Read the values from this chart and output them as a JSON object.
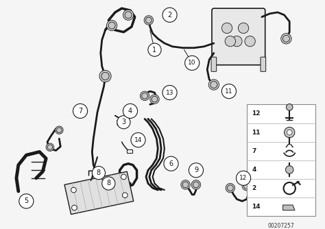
{
  "bg_color": "#f5f5f5",
  "line_color": "#1a1a1a",
  "label_color": "#111111",
  "part_number_text": "00207257",
  "fig_width": 4.74,
  "fig_height": 3.34,
  "dpi": 100,
  "legend_items": [
    "12",
    "11",
    "7",
    "4",
    "2",
    "14"
  ],
  "lw_hose": 2.0,
  "lw_thin": 1.1
}
